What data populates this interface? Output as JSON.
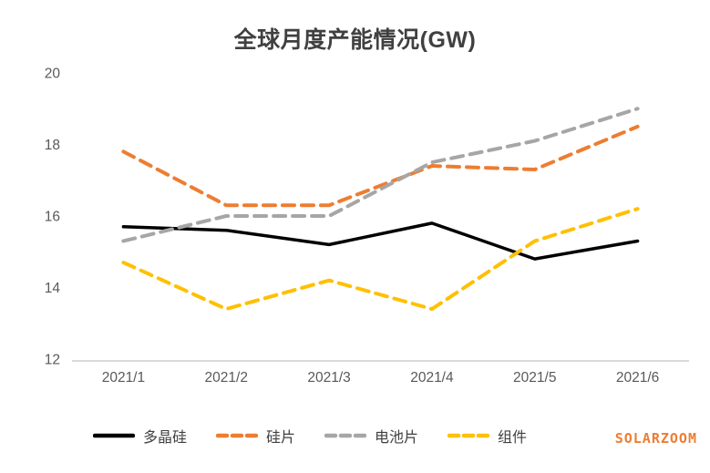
{
  "chart_data": {
    "type": "line",
    "title": "全球月度产能情况(GW)",
    "xlabel": "",
    "ylabel": "",
    "categories": [
      "2021/1",
      "2021/2",
      "2021/3",
      "2021/4",
      "2021/5",
      "2021/6"
    ],
    "series": [
      {
        "name": "多晶硅",
        "color": "#000000",
        "dashed": false,
        "values": [
          15.7,
          15.6,
          15.2,
          15.8,
          14.8,
          15.3
        ]
      },
      {
        "name": "硅片",
        "color": "#ED7D31",
        "dashed": true,
        "values": [
          17.8,
          16.3,
          16.3,
          17.4,
          17.3,
          18.5
        ]
      },
      {
        "name": "电池片",
        "color": "#A6A6A6",
        "dashed": true,
        "values": [
          15.3,
          16.0,
          16.0,
          17.5,
          18.1,
          19.0
        ]
      },
      {
        "name": "组件",
        "color": "#FFC000",
        "dashed": true,
        "values": [
          14.7,
          13.4,
          14.2,
          13.4,
          15.3,
          16.2
        ]
      }
    ],
    "y_axis": {
      "min": 12,
      "max": 20,
      "step": 2,
      "ticks": [
        12,
        14,
        16,
        18,
        20
      ]
    },
    "grid": false,
    "legend_position": "bottom",
    "colors": {
      "axis_line": "#D9D9D9",
      "tick_label": "#595959",
      "title_text": "#404040",
      "watermark": "#ED7D31"
    }
  },
  "watermark": "SOLARZOOM"
}
